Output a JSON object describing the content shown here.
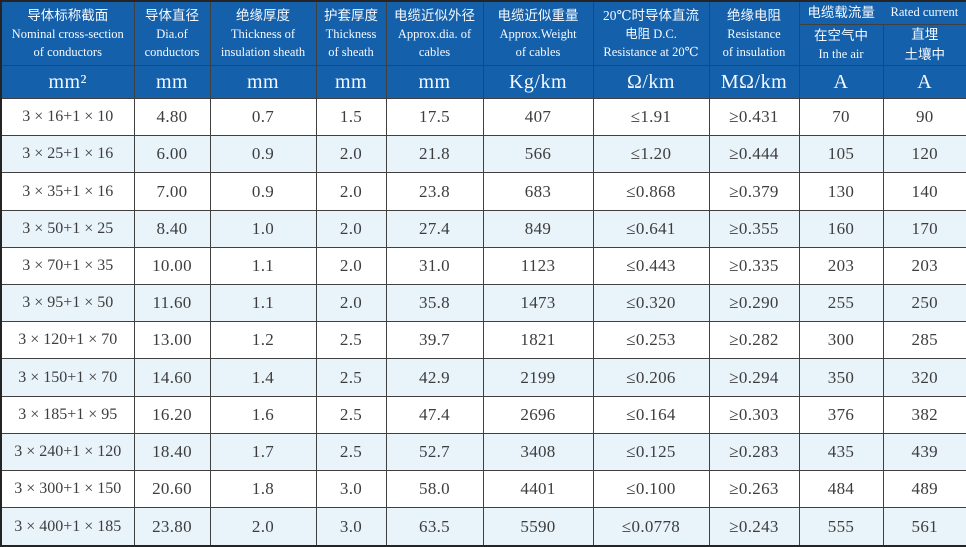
{
  "table": {
    "title_semantic": "cable-specifications-table",
    "colors": {
      "header_bg": "#1460ab",
      "stripe_bg": "#e8f3fa",
      "grid": "#404040",
      "header_text": "#f6f9fd",
      "data_text": "#3d3d3d"
    },
    "header": {
      "columns": [
        {
          "lines": [
            "导体标称截面",
            "Nominal cross-section",
            "of conductors"
          ]
        },
        {
          "lines": [
            "导体直径",
            "Dia.of",
            "conductors"
          ]
        },
        {
          "lines": [
            "绝缘厚度",
            "Thickness of",
            "insulation sheath"
          ]
        },
        {
          "lines": [
            "护套厚度",
            "Thickness",
            "of sheath"
          ]
        },
        {
          "lines": [
            "电缆近似外径",
            "Approx.dia. of",
            "cables"
          ]
        },
        {
          "lines": [
            "电缆近似重量",
            "Approx.Weight",
            "of cables"
          ]
        },
        {
          "lines": [
            "20℃时导体直流",
            "电阻 D.C.",
            "Resistance at 20℃"
          ]
        },
        {
          "lines": [
            "绝缘电阻",
            "Resistance",
            "of insulation"
          ]
        }
      ],
      "current_group": {
        "zh": "电缆载流量",
        "en": "Rated current"
      },
      "sub_columns": [
        {
          "lines": [
            "在空气中",
            "In the air"
          ]
        },
        {
          "lines": [
            "直埋",
            "土壤中"
          ]
        }
      ],
      "units": [
        "mm²",
        "mm",
        "mm",
        "mm",
        "mm",
        "Kg/km",
        "Ω/km",
        "MΩ/km",
        "A",
        "A"
      ]
    },
    "rows": [
      [
        "3 × 16+1 × 10",
        "4.80",
        "0.7",
        "1.5",
        "17.5",
        "407",
        "≤1.91",
        "≥0.431",
        "70",
        "90"
      ],
      [
        "3 × 25+1 × 16",
        "6.00",
        "0.9",
        "2.0",
        "21.8",
        "566",
        "≤1.20",
        "≥0.444",
        "105",
        "120"
      ],
      [
        "3 × 35+1 × 16",
        "7.00",
        "0.9",
        "2.0",
        "23.8",
        "683",
        "≤0.868",
        "≥0.379",
        "130",
        "140"
      ],
      [
        "3 × 50+1 × 25",
        "8.40",
        "1.0",
        "2.0",
        "27.4",
        "849",
        "≤0.641",
        "≥0.355",
        "160",
        "170"
      ],
      [
        "3 × 70+1 × 35",
        "10.00",
        "1.1",
        "2.0",
        "31.0",
        "1123",
        "≤0.443",
        "≥0.335",
        "203",
        "203"
      ],
      [
        "3 × 95+1 × 50",
        "11.60",
        "1.1",
        "2.0",
        "35.8",
        "1473",
        "≤0.320",
        "≥0.290",
        "255",
        "250"
      ],
      [
        "3 × 120+1 × 70",
        "13.00",
        "1.2",
        "2.5",
        "39.7",
        "1821",
        "≤0.253",
        "≥0.282",
        "300",
        "285"
      ],
      [
        "3 × 150+1 × 70",
        "14.60",
        "1.4",
        "2.5",
        "42.9",
        "2199",
        "≤0.206",
        "≥0.294",
        "350",
        "320"
      ],
      [
        "3 × 185+1 × 95",
        "16.20",
        "1.6",
        "2.5",
        "47.4",
        "2696",
        "≤0.164",
        "≥0.303",
        "376",
        "382"
      ],
      [
        "3 × 240+1 × 120",
        "18.40",
        "1.7",
        "2.5",
        "52.7",
        "3408",
        "≤0.125",
        "≥0.283",
        "435",
        "439"
      ],
      [
        "3 × 300+1 × 150",
        "20.60",
        "1.8",
        "3.0",
        "58.0",
        "4401",
        "≤0.100",
        "≥0.263",
        "484",
        "489"
      ],
      [
        "3 × 400+1 × 185",
        "23.80",
        "2.0",
        "3.0",
        "63.5",
        "5590",
        "≤0.0778",
        "≥0.243",
        "555",
        "561"
      ]
    ]
  }
}
